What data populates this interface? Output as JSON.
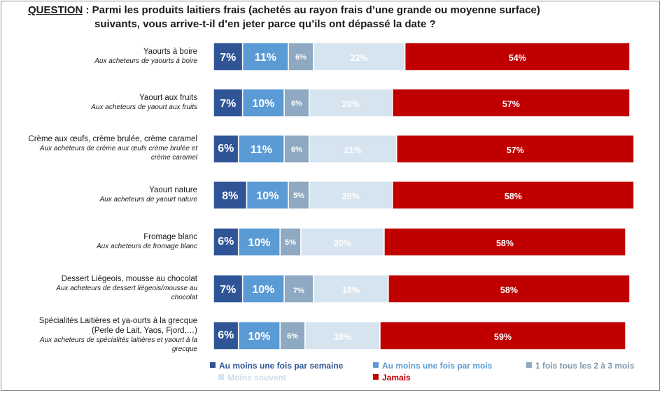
{
  "question": {
    "label": "QUESTION",
    "line1_rest": " : Parmi les produits laitiers frais (achetés au rayon frais d’une grande ou moyenne surface)",
    "line2": "suivants, vous arrive-t-il d’en jeter parce qu’ils ont dépassé la date ?"
  },
  "colors": {
    "weekly": "#2f5597",
    "monthly": "#5b9bd5",
    "every_2_3_months": "#8ea9c1",
    "less_often": "#d6e4f0",
    "never": "#c00000"
  },
  "legend": [
    {
      "label": "Au moins une fois par semaine",
      "color": "#2f5597",
      "text_color": "#2f5597"
    },
    {
      "label": "Au moins une fois par mois",
      "color": "#5b9bd5",
      "text_color": "#5b9bd5"
    },
    {
      "label": "1 fois tous les 2 à 3 mois",
      "color": "#8ea9c1",
      "text_color": "#7f96ad"
    },
    {
      "label": "Moins souvent",
      "color": "#d6e4f0",
      "text_color": "#d0dcea"
    },
    {
      "label": "Jamais",
      "color": "#c00000",
      "text_color": "#c00000"
    }
  ],
  "rows": [
    {
      "title": "Yaourts à boire",
      "sub": [
        "Aux acheteurs de yaourts à boire"
      ]
    },
    {
      "title": "Yaourt aux fruits",
      "sub": [
        "Aux acheteurs de yaourt aux fruits"
      ]
    },
    {
      "title": "Crème aux œufs, crème brulée, crème caramel",
      "sub": [
        "Aux acheteurs de crème aux œufs crème brulée et",
        "crème caramel"
      ]
    },
    {
      "title": "Yaourt nature",
      "sub": [
        "Aux acheteurs de yaourt nature"
      ]
    },
    {
      "title": "Fromage blanc",
      "sub": [
        "Aux acheteurs de fromage blanc"
      ]
    },
    {
      "title": "Dessert Liégeois, mousse au chocolat",
      "sub": [
        "Aux acheteurs de dessert liégeois/mousse au",
        "chocolat"
      ]
    },
    {
      "title": "Spécialités Laitières et ya-ourts à la grecque",
      "title2": "(Perle de Lait, Yaos, Fjord,…)",
      "sub": [
        "Aux acheteurs de spécialités laitières et yaourt à la",
        "grecque"
      ]
    }
  ],
  "chart_data": {
    "type": "bar",
    "orientation": "horizontal",
    "stacked": true,
    "unit": "%",
    "categories": [
      "Yaourts à boire",
      "Yaourt aux fruits",
      "Crème aux œufs, crème brulée, crème caramel",
      "Yaourt nature",
      "Fromage blanc",
      "Dessert Liégeois, mousse au chocolat",
      "Spécialités Laitières et ya-ourts à la grecque"
    ],
    "series": [
      {
        "name": "Au moins une fois par semaine",
        "values": [
          7,
          7,
          6,
          8,
          6,
          7,
          6
        ],
        "labels": [
          "7%",
          "7%",
          "6%",
          "8%",
          "6%",
          "7%",
          "6%"
        ],
        "color": "#2f5597",
        "label_color": "#ffffff"
      },
      {
        "name": "Au moins une fois par mois",
        "values": [
          11,
          10,
          11,
          10,
          10,
          10,
          10
        ],
        "labels": [
          "11%",
          "10%",
          "11%",
          "10%",
          "10%",
          "10%",
          "10%"
        ],
        "color": "#5b9bd5",
        "label_color": "#ffffff"
      },
      {
        "name": "1 fois tous les 2 à 3 mois",
        "values": [
          6,
          6,
          6,
          5,
          5,
          7,
          6
        ],
        "labels": [
          "6%",
          "6%",
          "6%",
          "5%",
          "5%",
          "7%",
          "6%"
        ],
        "color": "#8ea9c1",
        "label_color": "#ffffff"
      },
      {
        "name": "Moins souvent",
        "values": [
          22,
          20,
          21,
          20,
          20,
          18,
          18
        ],
        "labels": [
          "22%",
          "20%",
          "21%",
          "20%",
          "20%",
          "18%",
          "18%"
        ],
        "color": "#d6e4f0",
        "label_color": "#ffffff"
      },
      {
        "name": "Jamais",
        "values": [
          54,
          57,
          57,
          58,
          58,
          58,
          59
        ],
        "labels": [
          "54%",
          "57%",
          "57%",
          "58%",
          "58%",
          "58%",
          "59%"
        ],
        "color": "#c00000",
        "label_color": "#ffffff"
      }
    ],
    "xlim": [
      0,
      100
    ],
    "grid": false,
    "legend_position": "bottom"
  }
}
